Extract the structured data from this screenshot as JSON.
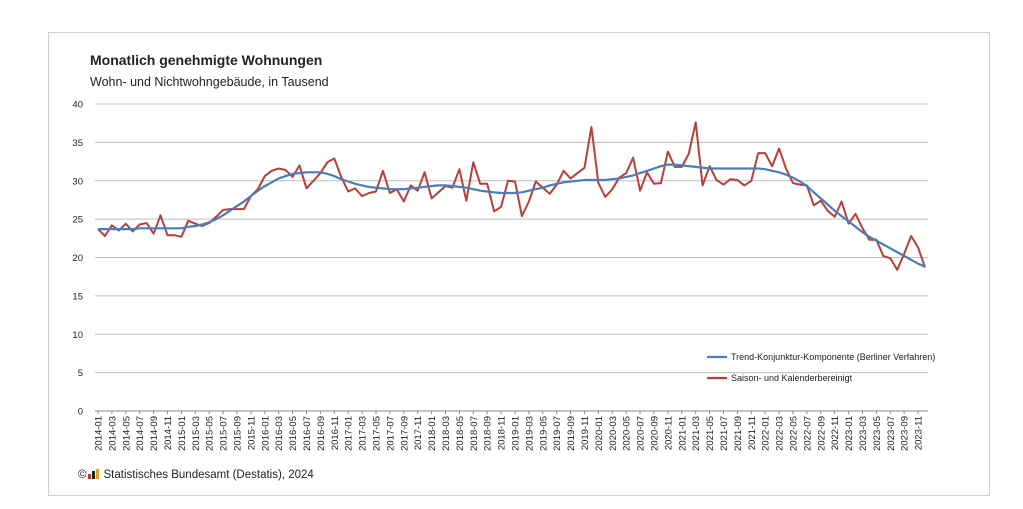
{
  "chart_data": {
    "type": "line",
    "title": "Monatlich genehmigte Wohnungen",
    "subtitle": "Wohn- und Nichtwohngebäude, in Tausend",
    "xlabel": "",
    "ylabel": "",
    "ylim": [
      0,
      40
    ],
    "yticks": [
      0,
      5,
      10,
      15,
      20,
      25,
      30,
      35,
      40
    ],
    "grid": true,
    "legend_position": "bottom-right",
    "x": [
      "2014-01",
      "2014-02",
      "2014-03",
      "2014-04",
      "2014-05",
      "2014-06",
      "2014-07",
      "2014-08",
      "2014-09",
      "2014-10",
      "2014-11",
      "2014-12",
      "2015-01",
      "2015-02",
      "2015-03",
      "2015-04",
      "2015-05",
      "2015-06",
      "2015-07",
      "2015-08",
      "2015-09",
      "2015-10",
      "2015-11",
      "2015-12",
      "2016-01",
      "2016-02",
      "2016-03",
      "2016-04",
      "2016-05",
      "2016-06",
      "2016-07",
      "2016-08",
      "2016-09",
      "2016-10",
      "2016-11",
      "2016-12",
      "2017-01",
      "2017-02",
      "2017-03",
      "2017-04",
      "2017-05",
      "2017-06",
      "2017-07",
      "2017-08",
      "2017-09",
      "2017-10",
      "2017-11",
      "2017-12",
      "2018-01",
      "2018-02",
      "2018-03",
      "2018-04",
      "2018-05",
      "2018-06",
      "2018-07",
      "2018-08",
      "2018-09",
      "2018-10",
      "2018-11",
      "2018-12",
      "2019-01",
      "2019-02",
      "2019-03",
      "2019-04",
      "2019-05",
      "2019-06",
      "2019-07",
      "2019-08",
      "2019-09",
      "2019-10",
      "2019-11",
      "2019-12",
      "2020-01",
      "2020-02",
      "2020-03",
      "2020-04",
      "2020-05",
      "2020-06",
      "2020-07",
      "2020-08",
      "2020-09",
      "2020-10",
      "2020-11",
      "2020-12",
      "2021-01",
      "2021-02",
      "2021-03",
      "2021-04",
      "2021-05",
      "2021-06",
      "2021-07",
      "2021-08",
      "2021-09",
      "2021-10",
      "2021-11",
      "2021-12",
      "2022-01",
      "2022-02",
      "2022-03",
      "2022-04",
      "2022-05",
      "2022-06",
      "2022-07",
      "2022-08",
      "2022-09",
      "2022-10",
      "2022-11",
      "2022-12",
      "2023-01",
      "2023-02",
      "2023-03",
      "2023-04",
      "2023-05",
      "2023-06",
      "2023-07",
      "2023-08",
      "2023-09",
      "2023-10",
      "2023-11",
      "2023-12"
    ],
    "series": [
      {
        "name": "Trend-Konjunktur-Komponente (Berliner Verfahren)",
        "color": "#4a7ebb",
        "values": [
          23.7,
          23.7,
          23.7,
          23.7,
          23.7,
          23.7,
          23.8,
          23.8,
          23.8,
          23.8,
          23.8,
          23.8,
          23.8,
          24.0,
          24.1,
          24.3,
          24.6,
          25.0,
          25.5,
          26.1,
          26.7,
          27.3,
          28.0,
          28.7,
          29.3,
          29.8,
          30.3,
          30.6,
          30.9,
          31.0,
          31.1,
          31.1,
          31.1,
          30.9,
          30.6,
          30.2,
          29.9,
          29.6,
          29.4,
          29.2,
          29.1,
          29.0,
          28.9,
          28.9,
          28.9,
          29.0,
          29.1,
          29.2,
          29.3,
          29.4,
          29.4,
          29.3,
          29.2,
          29.1,
          28.9,
          28.7,
          28.6,
          28.5,
          28.4,
          28.4,
          28.4,
          28.5,
          28.7,
          28.9,
          29.1,
          29.4,
          29.6,
          29.8,
          29.9,
          30.0,
          30.1,
          30.1,
          30.1,
          30.1,
          30.2,
          30.3,
          30.5,
          30.7,
          31.0,
          31.3,
          31.6,
          31.9,
          32.1,
          32.1,
          32.0,
          31.9,
          31.8,
          31.7,
          31.6,
          31.6,
          31.6,
          31.6,
          31.6,
          31.6,
          31.6,
          31.6,
          31.5,
          31.3,
          31.1,
          30.8,
          30.4,
          29.9,
          29.3,
          28.5,
          27.7,
          26.9,
          26.1,
          25.4,
          24.7,
          24.0,
          23.3,
          22.7,
          22.2,
          21.7,
          21.2,
          20.7,
          20.2,
          19.7,
          19.2,
          18.8
        ]
      },
      {
        "name": "Saison- und Kalenderbereinigt",
        "color": "#b83f3a",
        "values": [
          23.7,
          22.8,
          24.2,
          23.5,
          24.4,
          23.4,
          24.3,
          24.5,
          23.1,
          25.5,
          22.9,
          22.9,
          22.7,
          24.8,
          24.4,
          24.1,
          24.5,
          25.3,
          26.2,
          26.3,
          26.3,
          26.3,
          28.0,
          28.9,
          30.6,
          31.3,
          31.6,
          31.4,
          30.5,
          32.0,
          29.0,
          30.0,
          31.0,
          32.4,
          32.9,
          30.5,
          28.6,
          29.0,
          28.0,
          28.4,
          28.6,
          31.3,
          28.4,
          28.9,
          27.3,
          29.4,
          28.7,
          31.1,
          27.7,
          28.5,
          29.3,
          29.1,
          31.5,
          27.4,
          32.4,
          29.6,
          29.6,
          26.0,
          26.6,
          30.0,
          29.9,
          25.4,
          27.3,
          29.9,
          29.1,
          28.3,
          29.5,
          31.3,
          30.3,
          31.0,
          31.7,
          37.0,
          29.7,
          27.9,
          28.9,
          30.4,
          31.0,
          33.0,
          28.7,
          31.1,
          29.6,
          29.7,
          33.8,
          31.8,
          31.8,
          33.5,
          37.6,
          29.4,
          31.9,
          30.1,
          29.5,
          30.2,
          30.1,
          29.4,
          30.0,
          33.6,
          33.6,
          31.9,
          34.2,
          31.6,
          29.7,
          29.5,
          29.4,
          26.8,
          27.4,
          26.1,
          25.3,
          27.3,
          24.4,
          25.7,
          23.8,
          22.3,
          22.3,
          20.2,
          19.9,
          18.4,
          20.5,
          22.8,
          21.3,
          18.7
        ]
      }
    ]
  },
  "source": "Statistisches Bundesamt (Destatis), 2024",
  "copyright": "©"
}
